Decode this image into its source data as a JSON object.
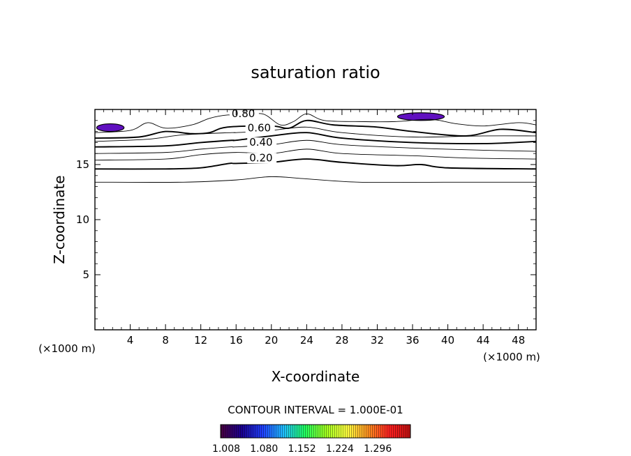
{
  "chart_data": {
    "type": "contour",
    "title": "saturation ratio",
    "xlabel": "X-coordinate",
    "ylabel": "Z-coordinate",
    "x_unit": "(×1000 m)",
    "y_unit": "(×1000 m)",
    "xlim": [
      0,
      50
    ],
    "ylim": [
      0,
      20
    ],
    "x_ticks": [
      4,
      8,
      12,
      16,
      20,
      24,
      28,
      32,
      36,
      40,
      44,
      48
    ],
    "y_ticks": [
      5,
      10,
      15
    ],
    "contour_interval_text": "CONTOUR INTERVAL = 1.000E-01",
    "contour_labels": [
      {
        "text": "0.80",
        "x": 15.5,
        "z": 19.3
      },
      {
        "text": "0.60",
        "x": 17.3,
        "z": 18.0
      },
      {
        "text": "0.40",
        "x": 17.5,
        "z": 16.7
      },
      {
        "text": "0.20",
        "x": 17.5,
        "z": 15.3
      }
    ],
    "contours": [
      {
        "level": 0.1,
        "bold": false,
        "points": [
          [
            0,
            13.4
          ],
          [
            10,
            13.4
          ],
          [
            16,
            13.6
          ],
          [
            20,
            13.9
          ],
          [
            24,
            13.7
          ],
          [
            30,
            13.4
          ],
          [
            40,
            13.4
          ],
          [
            50,
            13.4
          ]
        ]
      },
      {
        "level": 0.2,
        "bold": true,
        "points": [
          [
            0,
            14.6
          ],
          [
            8,
            14.6
          ],
          [
            12,
            14.7
          ],
          [
            15.2,
            15.1
          ],
          [
            16,
            15.1
          ],
          [
            20,
            15.2
          ],
          [
            24,
            15.5
          ],
          [
            28,
            15.2
          ],
          [
            34,
            14.9
          ],
          [
            37,
            15.0
          ],
          [
            40,
            14.7
          ],
          [
            50,
            14.6
          ]
        ]
      },
      {
        "level": 0.3,
        "bold": false,
        "points": [
          [
            0,
            15.4
          ],
          [
            8,
            15.5
          ],
          [
            12,
            15.9
          ],
          [
            16,
            16.1
          ],
          [
            20,
            16.0
          ],
          [
            24,
            16.4
          ],
          [
            28,
            16.0
          ],
          [
            36,
            15.8
          ],
          [
            42,
            15.6
          ],
          [
            50,
            15.5
          ]
        ]
      },
      {
        "level": 0.4,
        "bold": false,
        "points": [
          [
            0,
            16.0
          ],
          [
            8,
            16.1
          ],
          [
            12,
            16.4
          ],
          [
            15.3,
            16.6
          ],
          [
            16,
            16.6
          ],
          [
            20,
            16.8
          ],
          [
            24,
            17.2
          ],
          [
            28,
            16.8
          ],
          [
            36,
            16.5
          ],
          [
            44,
            16.3
          ],
          [
            50,
            16.2
          ]
        ]
      },
      {
        "level": 0.5,
        "bold": true,
        "points": [
          [
            0,
            16.6
          ],
          [
            8,
            16.7
          ],
          [
            12,
            17.0
          ],
          [
            15.5,
            17.2
          ],
          [
            16,
            17.2
          ],
          [
            20,
            17.6
          ],
          [
            24,
            17.9
          ],
          [
            28,
            17.4
          ],
          [
            36,
            17.0
          ],
          [
            44,
            16.9
          ],
          [
            50,
            17.1
          ]
        ]
      },
      {
        "level": 0.6,
        "bold": false,
        "points": [
          [
            0,
            17.1
          ],
          [
            6,
            17.3
          ],
          [
            10,
            17.7
          ],
          [
            15.5,
            17.9
          ],
          [
            16,
            17.9
          ],
          [
            20,
            18.1
          ],
          [
            24,
            18.4
          ],
          [
            28,
            17.9
          ],
          [
            36,
            17.5
          ],
          [
            44,
            17.6
          ],
          [
            50,
            17.6
          ]
        ]
      },
      {
        "level": 0.7,
        "bold": true,
        "points": [
          [
            0,
            17.4
          ],
          [
            5,
            17.5
          ],
          [
            8,
            18.0
          ],
          [
            11,
            17.8
          ],
          [
            13,
            17.9
          ],
          [
            15,
            18.4
          ],
          [
            20,
            18.5
          ],
          [
            22,
            18.3
          ],
          [
            24,
            19.0
          ],
          [
            27,
            18.6
          ],
          [
            32,
            18.4
          ],
          [
            36,
            18.0
          ],
          [
            42,
            17.6
          ],
          [
            46,
            18.2
          ],
          [
            50,
            17.9
          ]
        ]
      },
      {
        "level": 0.8,
        "bold": false,
        "points": [
          [
            0,
            17.9
          ],
          [
            4,
            18.1
          ],
          [
            6,
            18.8
          ],
          [
            8,
            18.3
          ],
          [
            11,
            18.6
          ],
          [
            13,
            19.2
          ],
          [
            15,
            19.5
          ],
          [
            16.5,
            19.4
          ],
          [
            19,
            19.6
          ],
          [
            21,
            18.6
          ],
          [
            22.5,
            18.9
          ],
          [
            24,
            19.6
          ],
          [
            26,
            19.0
          ],
          [
            30,
            18.9
          ],
          [
            34,
            18.9
          ],
          [
            38,
            19.1
          ],
          [
            41,
            18.7
          ],
          [
            44,
            18.5
          ],
          [
            48,
            18.8
          ],
          [
            50,
            18.6
          ]
        ]
      }
    ],
    "regions": [
      {
        "level": 1.008,
        "color": "#6010c0",
        "x_range": [
          0.2,
          3.3
        ],
        "z_range": [
          18.0,
          18.7
        ]
      },
      {
        "level": 1.008,
        "color": "#6010c0",
        "x_range": [
          34.3,
          39.6
        ],
        "z_range": [
          19.0,
          19.7
        ]
      }
    ],
    "colorbar": {
      "labels": [
        "1.008",
        "1.080",
        "1.152",
        "1.224",
        "1.296"
      ],
      "colors": [
        "#4a0040",
        "#1a0090",
        "#2040ff",
        "#20c0ff",
        "#20ff60",
        "#a0ff20",
        "#ffff40",
        "#ff9020",
        "#ff2020",
        "#c01010"
      ]
    }
  }
}
